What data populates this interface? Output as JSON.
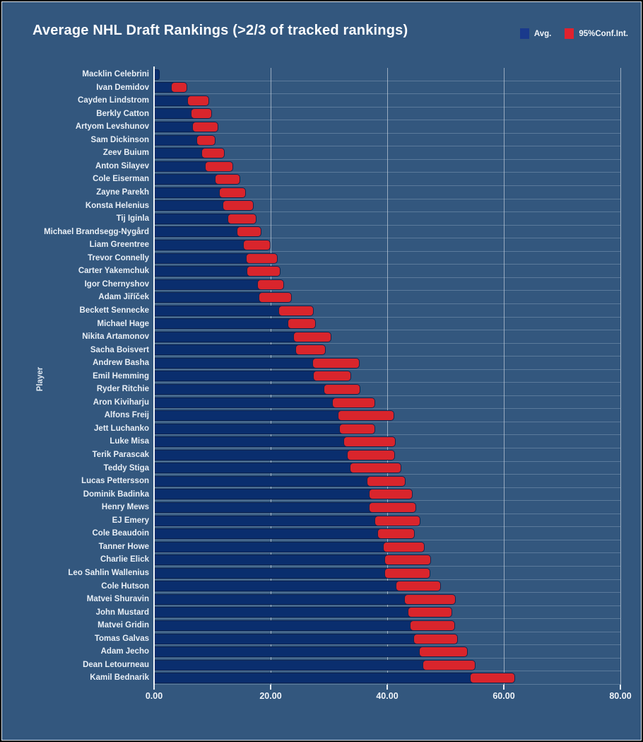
{
  "title": "Average NHL Draft Rankings (>2/3 of tracked rankings)",
  "legend": {
    "avg_label": "Avg.",
    "ci_label": "95%Conf.Int.",
    "avg_color": "#1a3a8c",
    "ci_color": "#e0222e"
  },
  "colors": {
    "background": "#33577e",
    "bar": "#0a2e6e",
    "ci": "#d9252c",
    "text": "#f2f6fa",
    "frame_border": "#dde5ed"
  },
  "chart_data": {
    "type": "bar",
    "orientation": "horizontal",
    "title": "Average NHL Draft Rankings (>2/3 of tracked rankings)",
    "xlabel": "",
    "ylabel": "Player",
    "xlim": [
      0,
      80
    ],
    "x_ticks": [
      0,
      20,
      40,
      60,
      80
    ],
    "x_tick_labels": [
      "0.00",
      "20.00",
      "40.00",
      "60.00",
      "80.00"
    ],
    "grid": "vertical",
    "legend_position": "top-right",
    "series_meaning": {
      "bar": "Avg.",
      "overlay": "95% confidence interval [low, high]"
    },
    "players": [
      {
        "name": "Macklin Celebrini",
        "avg": 1.0,
        "ci_low": 1.0,
        "ci_high": 1.0
      },
      {
        "name": "Ivan Demidov",
        "avg": 4.3,
        "ci_low": 2.9,
        "ci_high": 5.7
      },
      {
        "name": "Cayden Lindstrom",
        "avg": 7.6,
        "ci_low": 5.7,
        "ci_high": 9.5
      },
      {
        "name": "Berkly Catton",
        "avg": 8.2,
        "ci_low": 6.3,
        "ci_high": 10.0
      },
      {
        "name": "Artyom Levshunov",
        "avg": 8.8,
        "ci_low": 6.6,
        "ci_high": 11.0
      },
      {
        "name": "Sam Dickinson",
        "avg": 9.0,
        "ci_low": 7.3,
        "ci_high": 10.6
      },
      {
        "name": "Zeev Buium",
        "avg": 10.1,
        "ci_low": 8.1,
        "ci_high": 12.1
      },
      {
        "name": "Anton Silayev",
        "avg": 11.2,
        "ci_low": 8.7,
        "ci_high": 13.6
      },
      {
        "name": "Cole Eiserman",
        "avg": 12.6,
        "ci_low": 10.4,
        "ci_high": 14.8
      },
      {
        "name": "Zayne Parekh",
        "avg": 13.5,
        "ci_low": 11.1,
        "ci_high": 15.8
      },
      {
        "name": "Konsta Helenius",
        "avg": 14.4,
        "ci_low": 11.7,
        "ci_high": 17.1
      },
      {
        "name": "Tij Iginla",
        "avg": 15.1,
        "ci_low": 12.6,
        "ci_high": 17.6
      },
      {
        "name": "Michael Brandsegg-Nygård",
        "avg": 16.3,
        "ci_low": 14.2,
        "ci_high": 18.4
      },
      {
        "name": "Liam Greentree",
        "avg": 17.7,
        "ci_low": 15.3,
        "ci_high": 20.0
      },
      {
        "name": "Trevor Connelly",
        "avg": 18.5,
        "ci_low": 15.7,
        "ci_high": 21.2
      },
      {
        "name": "Carter Yakemchuk",
        "avg": 18.8,
        "ci_low": 15.9,
        "ci_high": 21.7
      },
      {
        "name": "Igor Chernyshov",
        "avg": 20.0,
        "ci_low": 17.7,
        "ci_high": 22.3
      },
      {
        "name": "Adam Jiříček",
        "avg": 20.8,
        "ci_low": 17.9,
        "ci_high": 23.6
      },
      {
        "name": "Beckett Sennecke",
        "avg": 24.3,
        "ci_low": 21.3,
        "ci_high": 27.4
      },
      {
        "name": "Michael Hage",
        "avg": 25.3,
        "ci_low": 22.9,
        "ci_high": 27.8
      },
      {
        "name": "Nikita Artamonov",
        "avg": 27.2,
        "ci_low": 23.9,
        "ci_high": 30.4
      },
      {
        "name": "Sacha Boisvert",
        "avg": 26.8,
        "ci_low": 24.2,
        "ci_high": 29.4
      },
      {
        "name": "Andrew Basha",
        "avg": 31.2,
        "ci_low": 27.1,
        "ci_high": 35.3
      },
      {
        "name": "Emil Hemming",
        "avg": 30.6,
        "ci_low": 27.3,
        "ci_high": 33.8
      },
      {
        "name": "Ryder Ritchie",
        "avg": 32.3,
        "ci_low": 29.1,
        "ci_high": 35.4
      },
      {
        "name": "Aron Kiviharju",
        "avg": 34.2,
        "ci_low": 30.5,
        "ci_high": 37.9
      },
      {
        "name": "Alfons Freij",
        "avg": 36.4,
        "ci_low": 31.5,
        "ci_high": 41.2
      },
      {
        "name": "Jett Luchanko",
        "avg": 34.9,
        "ci_low": 31.7,
        "ci_high": 38.0
      },
      {
        "name": "Luke Misa",
        "avg": 37.0,
        "ci_low": 32.5,
        "ci_high": 41.4
      },
      {
        "name": "Terik Parascak",
        "avg": 37.2,
        "ci_low": 33.1,
        "ci_high": 41.3
      },
      {
        "name": "Teddy Stiga",
        "avg": 38.0,
        "ci_low": 33.6,
        "ci_high": 42.4
      },
      {
        "name": "Lucas Pettersson",
        "avg": 39.9,
        "ci_low": 36.5,
        "ci_high": 43.2
      },
      {
        "name": "Dominik Badinka",
        "avg": 40.7,
        "ci_low": 36.9,
        "ci_high": 44.4
      },
      {
        "name": "Henry Mews",
        "avg": 41.0,
        "ci_low": 36.9,
        "ci_high": 45.0
      },
      {
        "name": "EJ Emery",
        "avg": 41.8,
        "ci_low": 37.8,
        "ci_high": 45.7
      },
      {
        "name": "Cole Beaudoin",
        "avg": 41.5,
        "ci_low": 38.3,
        "ci_high": 44.7
      },
      {
        "name": "Tanner Howe",
        "avg": 42.9,
        "ci_low": 39.3,
        "ci_high": 46.4
      },
      {
        "name": "Charlie Elick",
        "avg": 43.5,
        "ci_low": 39.5,
        "ci_high": 47.5
      },
      {
        "name": "Leo Sahlin Wallenius",
        "avg": 43.5,
        "ci_low": 39.5,
        "ci_high": 47.4
      },
      {
        "name": "Cole Hutson",
        "avg": 45.3,
        "ci_low": 41.4,
        "ci_high": 49.2
      },
      {
        "name": "Matvei Shuravin",
        "avg": 47.4,
        "ci_low": 42.9,
        "ci_high": 51.8
      },
      {
        "name": "John Mustard",
        "avg": 47.3,
        "ci_low": 43.5,
        "ci_high": 51.1
      },
      {
        "name": "Matvei Gridin",
        "avg": 47.8,
        "ci_low": 43.9,
        "ci_high": 51.6
      },
      {
        "name": "Tomas Galvas",
        "avg": 48.3,
        "ci_low": 44.5,
        "ci_high": 52.1
      },
      {
        "name": "Adam Jecho",
        "avg": 49.7,
        "ci_low": 45.5,
        "ci_high": 53.8
      },
      {
        "name": "Dean Letourneau",
        "avg": 50.7,
        "ci_low": 46.1,
        "ci_high": 55.2
      },
      {
        "name": "Kamil Bednarik",
        "avg": 58.1,
        "ci_low": 54.2,
        "ci_high": 61.9
      }
    ]
  }
}
